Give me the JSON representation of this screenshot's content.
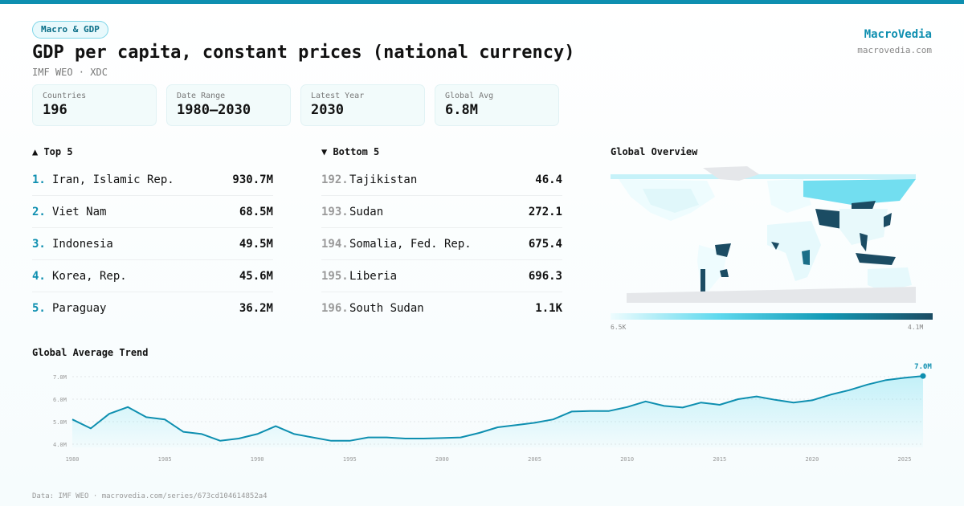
{
  "tag": "Macro & GDP",
  "title": "GDP per capita, constant prices (national currency)",
  "subtitle": "IMF WEO · XDC",
  "brand": {
    "name": "MacroVedia",
    "url": "macrovedia.com"
  },
  "stats": [
    {
      "label": "Countries",
      "value": "196"
    },
    {
      "label": "Date Range",
      "value": "1980–2030"
    },
    {
      "label": "Latest Year",
      "value": "2030"
    },
    {
      "label": "Global Avg",
      "value": "6.8M"
    }
  ],
  "top5": {
    "title": "▲ Top 5",
    "items": [
      {
        "rank": "1.",
        "name": "Iran, Islamic Rep.",
        "value": "930.7M"
      },
      {
        "rank": "2.",
        "name": "Viet Nam",
        "value": "68.5M"
      },
      {
        "rank": "3.",
        "name": "Indonesia",
        "value": "49.5M"
      },
      {
        "rank": "4.",
        "name": "Korea, Rep.",
        "value": "45.6M"
      },
      {
        "rank": "5.",
        "name": "Paraguay",
        "value": "36.2M"
      }
    ]
  },
  "bottom5": {
    "title": "▼ Bottom 5",
    "items": [
      {
        "rank": "192.",
        "name": "Tajikistan",
        "value": "46.4"
      },
      {
        "rank": "193.",
        "name": "Sudan",
        "value": "272.1"
      },
      {
        "rank": "194.",
        "name": "Somalia, Fed. Rep.",
        "value": "675.4"
      },
      {
        "rank": "195.",
        "name": "Liberia",
        "value": "696.3"
      },
      {
        "rank": "196.",
        "name": "South Sudan",
        "value": "1.1K"
      }
    ]
  },
  "map": {
    "title": "Global Overview",
    "legend_min": "6.5K",
    "legend_max": "4.1M",
    "colors": {
      "low": "#eefcfe",
      "mid": "#5fd9ee",
      "high": "#1b4c63",
      "nodata": "#e5e7ea"
    }
  },
  "chart_data": {
    "type": "area",
    "title": "Global Average Trend",
    "x": [
      1980,
      1981,
      1982,
      1983,
      1984,
      1985,
      1986,
      1987,
      1988,
      1989,
      1990,
      1991,
      1992,
      1993,
      1994,
      1995,
      1996,
      1997,
      1998,
      1999,
      2000,
      2001,
      2002,
      2003,
      2004,
      2005,
      2006,
      2007,
      2008,
      2009,
      2010,
      2011,
      2012,
      2013,
      2014,
      2015,
      2016,
      2017,
      2018,
      2019,
      2020,
      2021,
      2022,
      2023,
      2024,
      2025,
      2026
    ],
    "values": [
      5.1,
      4.7,
      5.35,
      5.65,
      5.2,
      5.1,
      4.55,
      4.45,
      4.15,
      4.25,
      4.45,
      4.8,
      4.45,
      4.3,
      4.15,
      4.15,
      4.3,
      4.3,
      4.25,
      4.25,
      4.27,
      4.3,
      4.5,
      4.75,
      4.85,
      4.95,
      5.1,
      5.45,
      5.47,
      5.47,
      5.65,
      5.9,
      5.7,
      5.63,
      5.85,
      5.75,
      6.0,
      6.12,
      5.97,
      5.85,
      5.95,
      6.2,
      6.4,
      6.65,
      6.85,
      6.95,
      7.03
    ],
    "unit": "M",
    "yticks": [
      4,
      5,
      6,
      7
    ],
    "ytick_labels": [
      "4.0M",
      "5.0M",
      "6.0M",
      "7.0M"
    ],
    "xticks": [
      1980,
      1985,
      1990,
      1995,
      2000,
      2005,
      2010,
      2015,
      2020,
      2025
    ],
    "ylim": [
      3.6,
      7.2
    ],
    "last_label": "7.0M",
    "color": "#0e8fb0",
    "grid": true
  },
  "footer": "Data: IMF WEO · macrovedia.com/series/673cd104614852a4"
}
